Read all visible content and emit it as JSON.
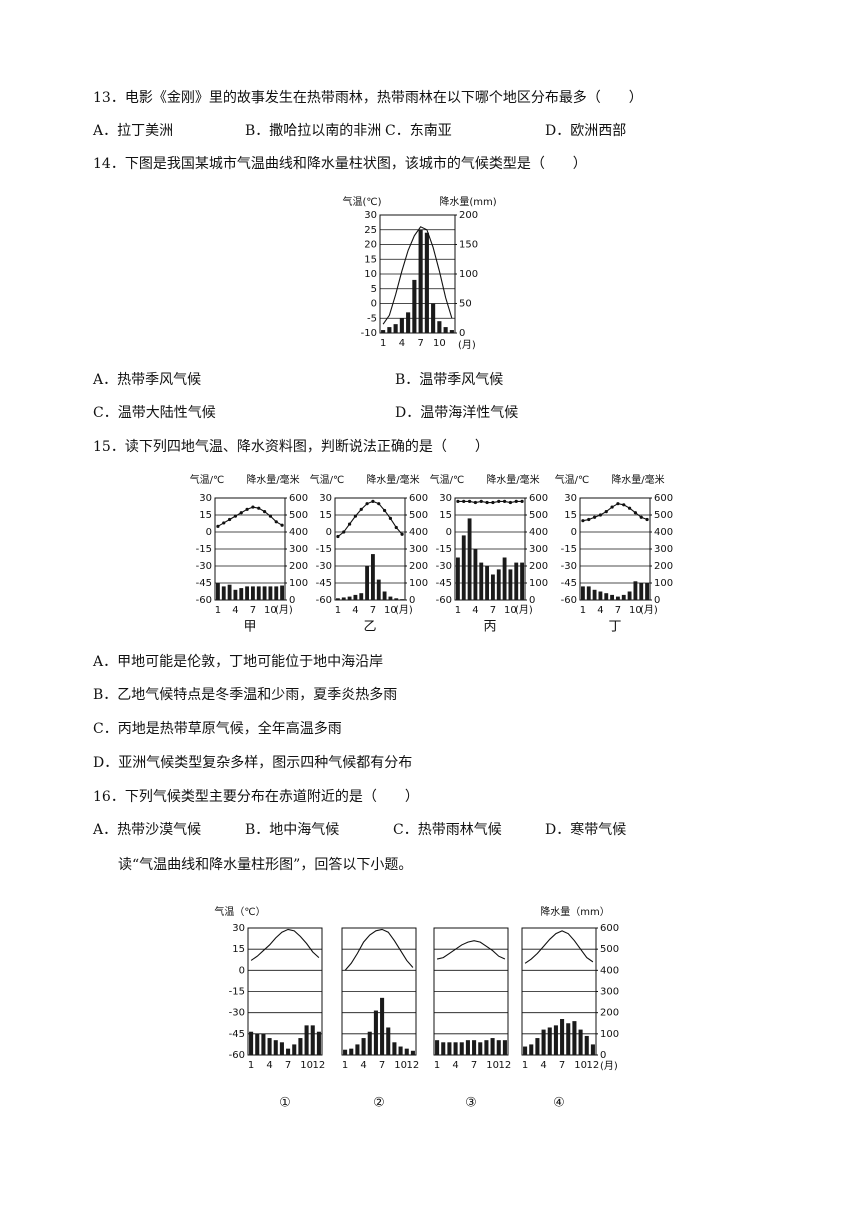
{
  "questions": [
    {
      "stem": "13．电影《金刚》里的故事发生在热带雨林，热带雨林在以下哪个地区分布最多（　　）",
      "options": [
        "A．拉丁美洲",
        "B．撒哈拉以南的非洲",
        "C．东南亚",
        "D．欧洲西部"
      ]
    },
    {
      "stem": "14．下图是我国某城市气温曲线和降水量柱状图，该城市的气候类型是（　　）",
      "figure": {
        "type": "climograph",
        "y_label": "气温(℃)",
        "y2_label": "降水量(mm)",
        "ylim": [
          -10,
          30
        ],
        "yticks": [
          -10,
          -5,
          0,
          5,
          10,
          15,
          20,
          25,
          30
        ],
        "y2lim": [
          0,
          200
        ],
        "y2ticks": [
          0,
          50,
          100,
          150,
          200
        ],
        "x_categories": [
          "1",
          null,
          null,
          "4",
          null,
          null,
          "7",
          null,
          null,
          "10",
          null,
          null
        ],
        "x_unit": "(月)",
        "grid": true,
        "point_markers": false,
        "panels": [
          {
            "temperature": [
              -7,
              -4,
              3,
              11,
              18,
              23,
              26,
              25,
              19,
              11,
              2,
              -5
            ],
            "precipitation": [
              5,
              10,
              15,
              25,
              35,
              90,
              175,
              170,
              50,
              20,
              10,
              5
            ]
          }
        ]
      },
      "options": [
        "A．热带季风气候",
        "B．温带季风气候",
        "C．温带大陆性气候",
        "D．温带海洋性气候"
      ]
    },
    {
      "stem": "15．读下列四地气温、降水资料图，判断说法正确的是（　　）",
      "figure": {
        "type": "climograph",
        "y_label": "气温/℃",
        "y2_label": "降水量/毫米",
        "ylim": [
          -60,
          30
        ],
        "yticks": [
          -60,
          -45,
          -30,
          -15,
          0,
          15,
          30
        ],
        "y2lim": [
          0,
          600
        ],
        "y2ticks": [
          0,
          100,
          200,
          300,
          400,
          500,
          600
        ],
        "x_categories": [
          "1",
          null,
          null,
          "4",
          null,
          null,
          "7",
          null,
          null,
          "10",
          null,
          null
        ],
        "x_unit": "(月)",
        "grid": true,
        "point_markers": true,
        "panels": [
          {
            "label": "甲",
            "temperature": [
              5,
              8,
              11,
              14,
              17,
              20,
              22,
              21,
              18,
              14,
              9,
              6
            ],
            "precipitation": [
              100,
              80,
              90,
              60,
              70,
              80,
              80,
              80,
              80,
              80,
              80,
              85
            ]
          },
          {
            "label": "乙",
            "temperature": [
              -4,
              0,
              7,
              14,
              20,
              25,
              27,
              25,
              19,
              12,
              4,
              -2
            ],
            "precipitation": [
              10,
              15,
              20,
              30,
              40,
              200,
              270,
              120,
              50,
              20,
              10,
              5
            ]
          },
          {
            "label": "丙",
            "temperature": [
              27,
              27,
              27,
              26,
              27,
              26,
              26,
              27,
              27,
              26,
              27,
              27
            ],
            "precipitation": [
              250,
              380,
              480,
              300,
              220,
              200,
              150,
              180,
              250,
              180,
              220,
              220
            ]
          },
          {
            "label": "丁",
            "temperature": [
              10,
              11,
              13,
              15,
              18,
              22,
              25,
              24,
              21,
              17,
              13,
              11
            ],
            "precipitation": [
              80,
              80,
              60,
              50,
              40,
              30,
              20,
              30,
              50,
              110,
              100,
              100
            ]
          }
        ]
      },
      "options": [
        "A．甲地可能是伦敦，丁地可能位于地中海沿岸",
        "B．乙地气候特点是冬季温和少雨，夏季炎热多雨",
        "C．丙地是热带草原气候，全年高温多雨",
        "D．亚洲气候类型复杂多样，图示四种气候都有分布"
      ]
    },
    {
      "stem": "16．下列气候类型主要分布在赤道附近的是（　　）",
      "options": [
        "A．热带沙漠气候",
        "B．地中海气候",
        "C．热带雨林气候",
        "D．寒带气候"
      ]
    }
  ],
  "intro": "读“气温曲线和降水量柱形图”，回答以下小题。",
  "figure": {
    "type": "climograph",
    "y_label": "气温（℃）",
    "y2_label": "降水量（mm）",
    "ylim": [
      -60,
      30
    ],
    "yticks": [
      -60,
      -45,
      -30,
      -15,
      0,
      15,
      30
    ],
    "y2lim": [
      0,
      600
    ],
    "y2ticks": [
      0,
      100,
      200,
      300,
      400,
      500,
      600
    ],
    "x_categories": [
      "1",
      null,
      null,
      "4",
      null,
      null,
      "7",
      null,
      null,
      "10",
      null,
      "12"
    ],
    "x_unit": "(月)",
    "grid": true,
    "point_markers": false,
    "panels": [
      {
        "label": "①",
        "temperature": [
          7,
          10,
          14,
          18,
          23,
          27,
          29,
          28,
          24,
          19,
          13,
          9
        ],
        "precipitation": [
          110,
          100,
          100,
          80,
          70,
          60,
          30,
          50,
          80,
          140,
          140,
          110
        ]
      },
      {
        "label": "②",
        "temperature": [
          0,
          5,
          12,
          20,
          25,
          28,
          29,
          27,
          21,
          14,
          7,
          2
        ],
        "precipitation": [
          25,
          30,
          50,
          80,
          110,
          210,
          270,
          130,
          60,
          40,
          30,
          20
        ]
      },
      {
        "label": "③",
        "temperature": [
          8,
          9,
          12,
          15,
          18,
          20,
          21,
          20,
          17,
          14,
          10,
          8
        ],
        "precipitation": [
          70,
          60,
          60,
          60,
          60,
          70,
          70,
          60,
          70,
          80,
          70,
          70
        ]
      },
      {
        "label": "④",
        "temperature": [
          5,
          8,
          12,
          17,
          22,
          26,
          28,
          26,
          21,
          15,
          9,
          6
        ],
        "precipitation": [
          40,
          50,
          80,
          120,
          130,
          140,
          170,
          150,
          160,
          120,
          90,
          50
        ]
      }
    ]
  }
}
